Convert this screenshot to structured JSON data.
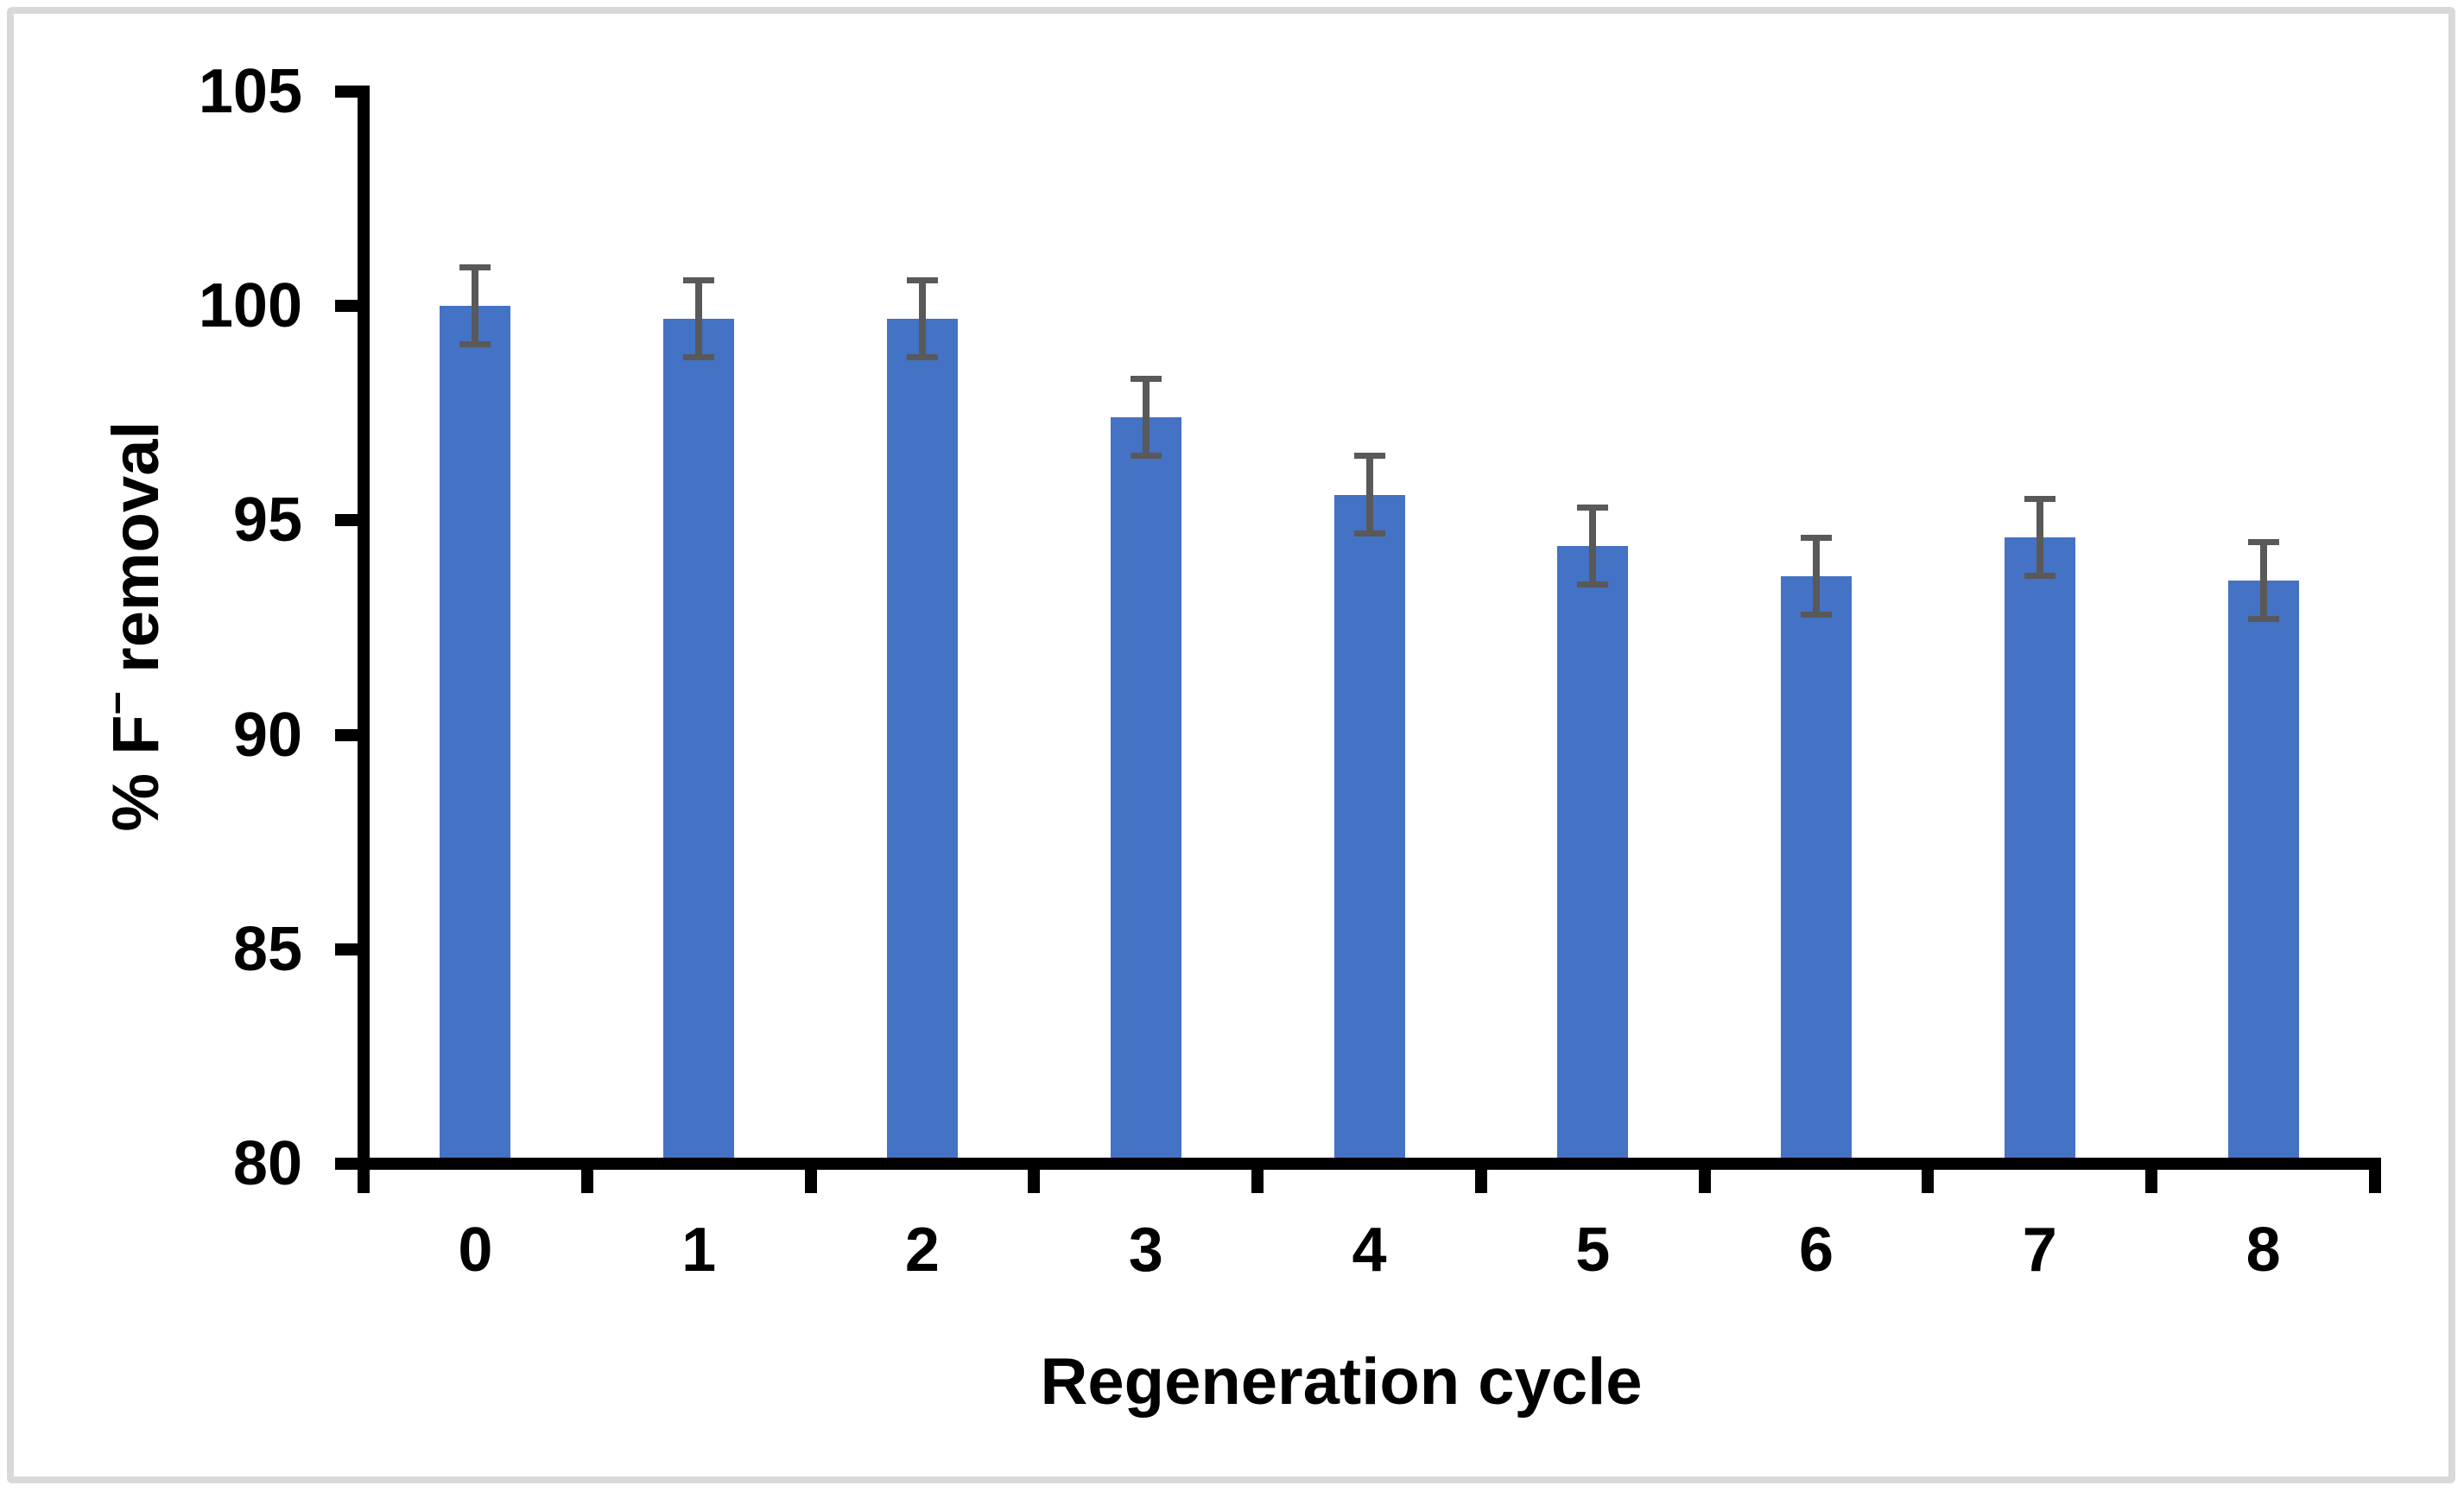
{
  "figure": {
    "background_color": "#FFFFFF",
    "border_color": "#D9D9D9"
  },
  "chart_data": {
    "type": "bar",
    "title": "",
    "xlabel": "Regeneration cycle",
    "ylabel": "% F⁻ removal",
    "ylabel_parts": {
      "prefix": "% F",
      "superscript": "−",
      "suffix": " removal"
    },
    "categories": [
      "0",
      "1",
      "2",
      "3",
      "4",
      "5",
      "6",
      "7",
      "8"
    ],
    "values": [
      100.0,
      99.7,
      99.7,
      97.4,
      95.6,
      94.4,
      93.7,
      94.6,
      93.6
    ],
    "error_bars": [
      0.9,
      0.9,
      0.9,
      0.9,
      0.9,
      0.9,
      0.9,
      0.9,
      0.9
    ],
    "ylim": [
      80,
      105
    ],
    "ytick_step": 5,
    "yticks": [
      105,
      100,
      95,
      90,
      85,
      80
    ],
    "grid": false,
    "legend": null,
    "bar_color": "#4472C4",
    "error_color": "#595959",
    "axis_color": "#000000",
    "text_color": "#000000"
  }
}
